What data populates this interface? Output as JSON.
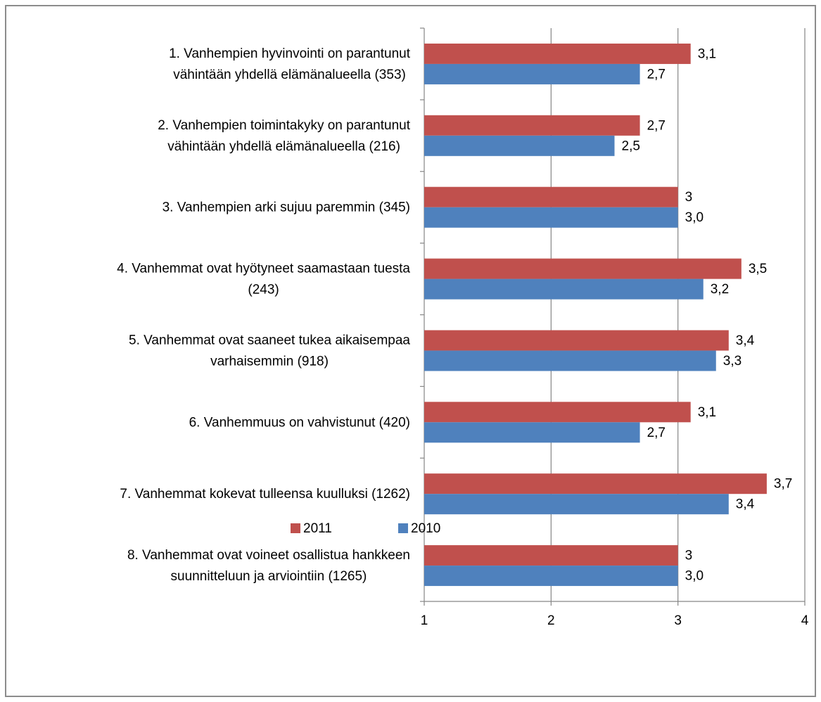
{
  "chart_data": {
    "type": "bar",
    "orientation": "horizontal",
    "categories": [
      "1. Vanhempien hyvinvointi on parantunut\nvähintään yhdellä elämänalueella (353)",
      "2. Vanhempien toimintakyky on parantunut\nvähintään yhdellä elämänalueella (216)",
      "3. Vanhempien arki sujuu paremmin (345)",
      "4. Vanhemmat ovat hyötyneet saamastaan tuesta\n(243)",
      "5. Vanhemmat ovat saaneet tukea aikaisempaa\nvarhaisemmin (918)",
      "6. Vanhemmuus on vahvistunut (420)",
      "7. Vanhemmat kokevat tulleensa kuulluksi (1262)",
      "8. Vanhemmat ovat voineet osallistua hankkeen\nsuunnitteluun ja arviointiin (1265)"
    ],
    "series": [
      {
        "name": "2011",
        "color": "#c0504d",
        "values": [
          3.1,
          2.7,
          3,
          3.5,
          3.4,
          3.1,
          3.7,
          3
        ],
        "value_labels": [
          "3,1",
          "2,7",
          "3",
          "3,5",
          "3,4",
          "3,1",
          "3,7",
          "3"
        ]
      },
      {
        "name": "2010",
        "color": "#4f81bd",
        "values": [
          2.7,
          2.5,
          3.0,
          3.2,
          3.3,
          2.7,
          3.4,
          3.0
        ],
        "value_labels": [
          "2,7",
          "2,5",
          "3,0",
          "3,2",
          "3,3",
          "2,7",
          "3,4",
          "3,0"
        ]
      }
    ],
    "xlim": [
      1,
      4
    ],
    "xticks": [
      1,
      2,
      3,
      4
    ],
    "grid": true,
    "legend": "bottom"
  }
}
